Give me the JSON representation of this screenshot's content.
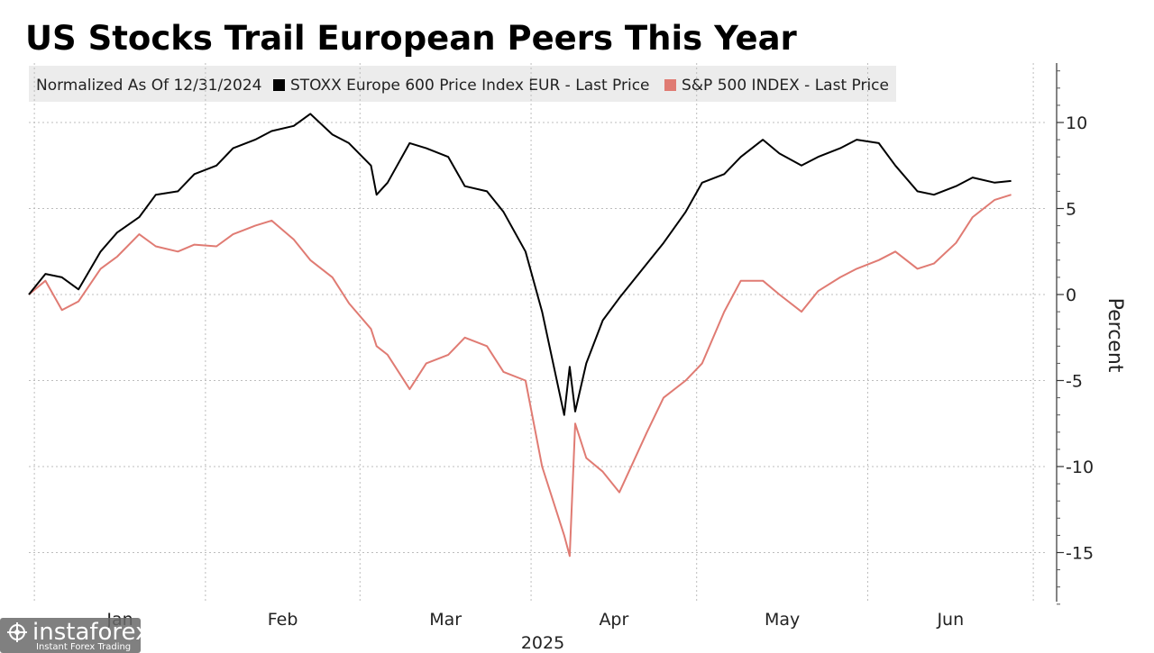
{
  "chart_data": {
    "type": "line",
    "title": "US Stocks Trail European Peers This Year",
    "legend_header": "Normalized As Of 12/31/2024",
    "legend_position": "top",
    "ylabel": "Percent",
    "ylim": [
      -18,
      13
    ],
    "yticks": [
      10,
      5,
      0,
      -5,
      -10,
      -15
    ],
    "grid": true,
    "months": [
      "Jan",
      "Feb",
      "Mar",
      "Apr",
      "May",
      "Jun"
    ],
    "year_label": "2025",
    "series": [
      {
        "name": "STOXX Europe 600 Price Index EUR - Last Price",
        "color": "#000000",
        "x": [
          "2024-12-31",
          "2025-01-03",
          "2025-01-06",
          "2025-01-09",
          "2025-01-13",
          "2025-01-16",
          "2025-01-20",
          "2025-01-23",
          "2025-01-27",
          "2025-01-30",
          "2025-02-03",
          "2025-02-06",
          "2025-02-10",
          "2025-02-13",
          "2025-02-17",
          "2025-02-20",
          "2025-02-24",
          "2025-02-27",
          "2025-03-03",
          "2025-03-04",
          "2025-03-06",
          "2025-03-10",
          "2025-03-13",
          "2025-03-17",
          "2025-03-20",
          "2025-03-24",
          "2025-03-27",
          "2025-03-31",
          "2025-04-03",
          "2025-04-07",
          "2025-04-08",
          "2025-04-09",
          "2025-04-11",
          "2025-04-14",
          "2025-04-17",
          "2025-04-22",
          "2025-04-25",
          "2025-04-29",
          "2025-05-02",
          "2025-05-06",
          "2025-05-09",
          "2025-05-13",
          "2025-05-16",
          "2025-05-20",
          "2025-05-23",
          "2025-05-27",
          "2025-05-30",
          "2025-06-03",
          "2025-06-06",
          "2025-06-10",
          "2025-06-13",
          "2025-06-17",
          "2025-06-20",
          "2025-06-24",
          "2025-06-27"
        ],
        "y": [
          0,
          1.2,
          1.0,
          0.3,
          2.5,
          3.6,
          4.5,
          5.8,
          6.0,
          7.0,
          7.5,
          8.5,
          9.0,
          9.5,
          9.8,
          10.5,
          9.3,
          8.8,
          7.5,
          5.8,
          6.5,
          8.8,
          8.5,
          8.0,
          6.3,
          6.0,
          4.8,
          2.5,
          -1.0,
          -7.0,
          -4.2,
          -6.8,
          -4.0,
          -1.5,
          -0.2,
          1.8,
          3.0,
          4.8,
          6.5,
          7.0,
          8.0,
          9.0,
          8.2,
          7.5,
          8.0,
          8.5,
          9.0,
          8.8,
          7.5,
          6.0,
          5.8,
          6.3,
          6.8,
          6.5,
          6.6
        ]
      },
      {
        "name": "S&P 500 INDEX - Last Price",
        "color": "#e07b73",
        "x": [
          "2024-12-31",
          "2025-01-03",
          "2025-01-06",
          "2025-01-09",
          "2025-01-13",
          "2025-01-16",
          "2025-01-20",
          "2025-01-23",
          "2025-01-27",
          "2025-01-30",
          "2025-02-03",
          "2025-02-06",
          "2025-02-10",
          "2025-02-13",
          "2025-02-17",
          "2025-02-20",
          "2025-02-24",
          "2025-02-27",
          "2025-03-03",
          "2025-03-04",
          "2025-03-06",
          "2025-03-10",
          "2025-03-13",
          "2025-03-17",
          "2025-03-20",
          "2025-03-24",
          "2025-03-27",
          "2025-03-31",
          "2025-04-03",
          "2025-04-07",
          "2025-04-08",
          "2025-04-09",
          "2025-04-11",
          "2025-04-14",
          "2025-04-17",
          "2025-04-22",
          "2025-04-25",
          "2025-04-29",
          "2025-05-02",
          "2025-05-06",
          "2025-05-09",
          "2025-05-13",
          "2025-05-16",
          "2025-05-20",
          "2025-05-23",
          "2025-05-27",
          "2025-05-30",
          "2025-06-03",
          "2025-06-06",
          "2025-06-10",
          "2025-06-13",
          "2025-06-17",
          "2025-06-20",
          "2025-06-24",
          "2025-06-27"
        ],
        "y": [
          0,
          0.8,
          -0.9,
          -0.4,
          1.5,
          2.2,
          3.5,
          2.8,
          2.5,
          2.9,
          2.8,
          3.5,
          4.0,
          4.3,
          3.2,
          2.0,
          1.0,
          -0.5,
          -2.0,
          -3.0,
          -3.5,
          -5.5,
          -4.0,
          -3.5,
          -2.5,
          -3.0,
          -4.5,
          -5.0,
          -10.0,
          -14.0,
          -15.2,
          -7.5,
          -9.5,
          -10.3,
          -11.5,
          -8.0,
          -6.0,
          -5.0,
          -4.0,
          -1.0,
          0.8,
          0.8,
          0.0,
          -1.0,
          0.2,
          1.0,
          1.5,
          2.0,
          2.5,
          1.5,
          1.8,
          3.0,
          4.5,
          5.5,
          5.8
        ]
      }
    ]
  },
  "watermark": {
    "brand": "instaforex",
    "tagline": "Instant Forex Trading"
  },
  "colors": {
    "legend_bg": "#ececec",
    "grid": "#bdbdbd",
    "black_series": "#000000",
    "red_series": "#e07b73"
  }
}
